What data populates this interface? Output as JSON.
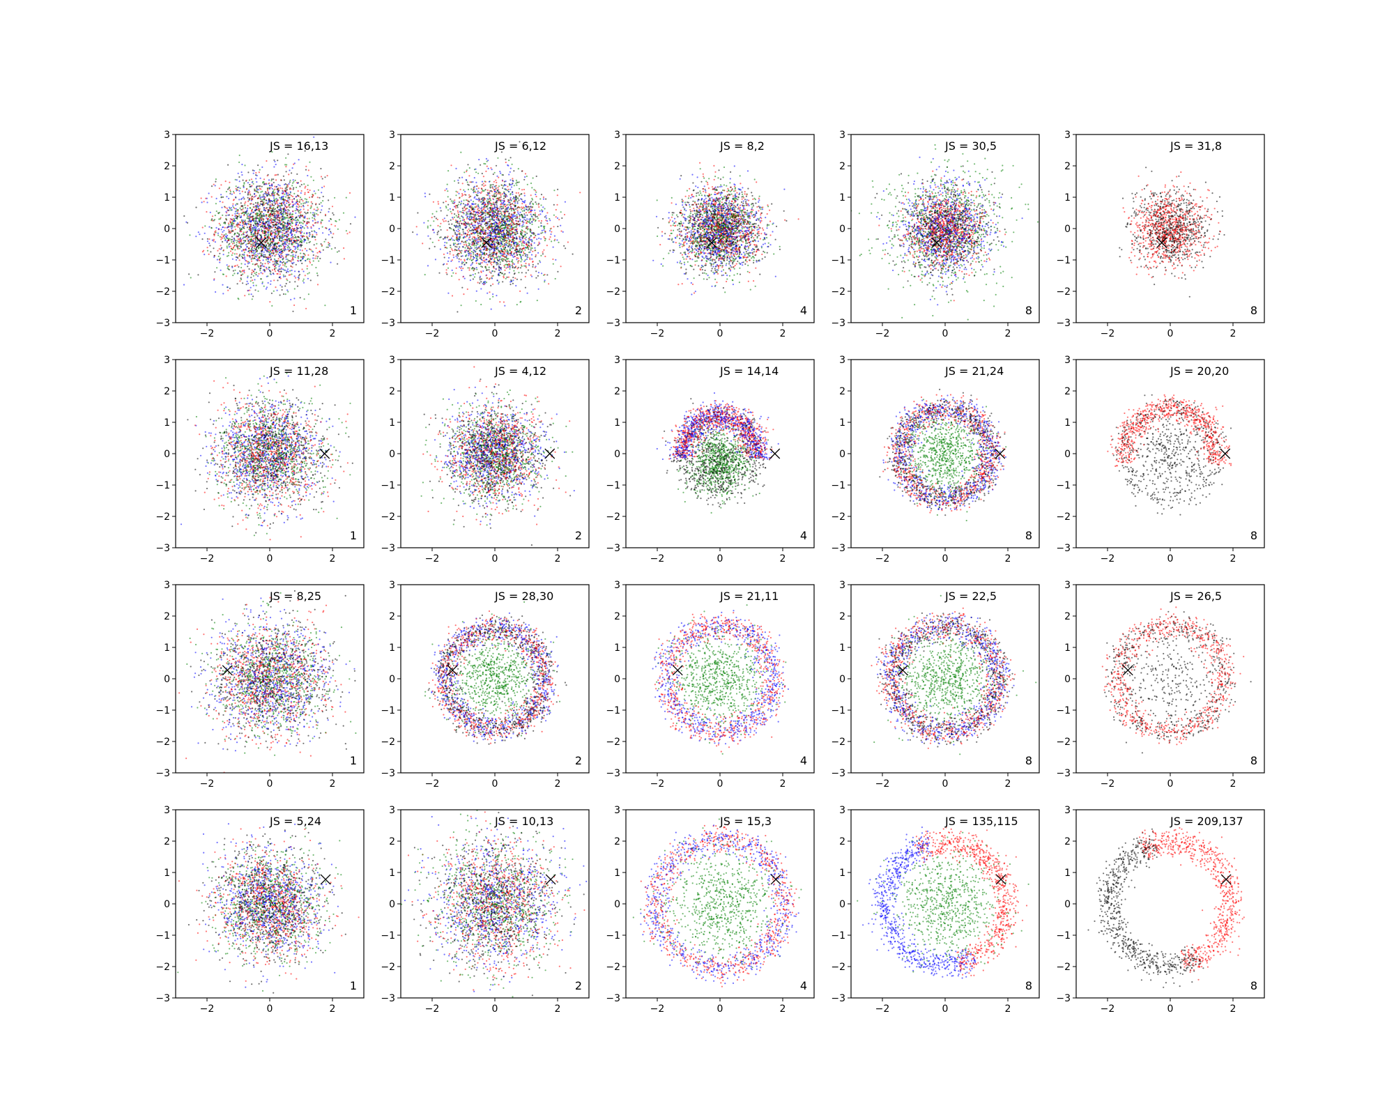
{
  "figure": {
    "layout": {
      "rows": 4,
      "cols": 5
    },
    "colors": {
      "red": "#ff0000",
      "blue": "#0000ff",
      "green": "#008000",
      "black": "#000000",
      "marker": "#000000"
    },
    "icons": {
      "marker": "x-marker-icon"
    }
  },
  "chart_data": [
    {
      "type": "scatter",
      "annotation": "JS = 16,13",
      "corner_label": "1",
      "xlim": [
        -3,
        3
      ],
      "ylim": [
        -3,
        3
      ],
      "xticks": [
        "−2",
        "0",
        "2"
      ],
      "yticks": [
        "−3",
        "−2",
        "−1",
        "0",
        "1",
        "2",
        "3"
      ],
      "marker": [
        -0.27,
        -0.45
      ],
      "series_colors": [
        "red",
        "blue",
        "green",
        "black"
      ],
      "distribution": {
        "shape": "gaussian",
        "sigma": 0.85
      }
    },
    {
      "type": "scatter",
      "annotation": "JS = 6,12",
      "corner_label": "2",
      "xlim": [
        -3,
        3
      ],
      "ylim": [
        -3,
        3
      ],
      "xticks": [
        "−2",
        "0",
        "2"
      ],
      "yticks": [
        "−3",
        "−2",
        "−1",
        "0",
        "1",
        "2",
        "3"
      ],
      "marker": [
        -0.27,
        -0.45
      ],
      "series_colors": [
        "red",
        "blue",
        "green",
        "black"
      ],
      "distribution": {
        "shape": "gaussian",
        "sigma": 0.8
      }
    },
    {
      "type": "scatter",
      "annotation": "JS = 8,2",
      "corner_label": "4",
      "xlim": [
        -3,
        3
      ],
      "ylim": [
        -3,
        3
      ],
      "xticks": [
        "−2",
        "0",
        "2"
      ],
      "yticks": [
        "−3",
        "−2",
        "−1",
        "0",
        "1",
        "2",
        "3"
      ],
      "marker": [
        -0.27,
        -0.45
      ],
      "series_colors": [
        "blue",
        "red",
        "black",
        "green"
      ],
      "distribution": {
        "shape": "gaussian",
        "sigma": 0.65
      }
    },
    {
      "type": "scatter",
      "annotation": "JS = 30,5",
      "corner_label": "8",
      "xlim": [
        -3,
        3
      ],
      "ylim": [
        -3,
        3
      ],
      "xticks": [
        "−2",
        "0",
        "2"
      ],
      "yticks": [
        "−3",
        "−2",
        "−1",
        "0",
        "1",
        "2",
        "3"
      ],
      "marker": [
        -0.27,
        -0.45
      ],
      "series_colors": [
        "green",
        "blue",
        "black",
        "red"
      ],
      "distribution": {
        "shape": "layered",
        "green": 1.0,
        "blue": 0.72,
        "red": 0.6
      }
    },
    {
      "type": "scatter",
      "annotation": "JS = 31,8",
      "corner_label": "8",
      "xlim": [
        -3,
        3
      ],
      "ylim": [
        -3,
        3
      ],
      "xticks": [
        "−2",
        "0",
        "2"
      ],
      "yticks": [
        "−3",
        "−2",
        "−1",
        "0",
        "1",
        "2",
        "3"
      ],
      "marker": [
        -0.27,
        -0.45
      ],
      "series_colors": [
        "black",
        "red"
      ],
      "distribution": {
        "shape": "gaussian",
        "sigma": 0.6
      }
    },
    {
      "type": "scatter",
      "annotation": "JS = 11,28",
      "corner_label": "1",
      "xlim": [
        -3,
        3
      ],
      "ylim": [
        -3,
        3
      ],
      "xticks": [
        "−2",
        "0",
        "2"
      ],
      "yticks": [
        "−3",
        "−2",
        "−1",
        "0",
        "1",
        "2",
        "3"
      ],
      "marker": [
        1.75,
        0.0
      ],
      "series_colors": [
        "red",
        "blue",
        "green",
        "black"
      ],
      "distribution": {
        "shape": "gaussian",
        "sigma": 0.85
      }
    },
    {
      "type": "scatter",
      "annotation": "JS = 4,12",
      "corner_label": "2",
      "xlim": [
        -3,
        3
      ],
      "ylim": [
        -3,
        3
      ],
      "xticks": [
        "−2",
        "0",
        "2"
      ],
      "yticks": [
        "−3",
        "−2",
        "−1",
        "0",
        "1",
        "2",
        "3"
      ],
      "marker": [
        1.75,
        0.0
      ],
      "series_colors": [
        "red",
        "blue",
        "green",
        "black"
      ],
      "distribution": {
        "shape": "gaussian",
        "sigma": 0.75
      }
    },
    {
      "type": "scatter",
      "annotation": "JS = 14,14",
      "corner_label": "4",
      "xlim": [
        -3,
        3
      ],
      "ylim": [
        -3,
        3
      ],
      "xticks": [
        "−2",
        "0",
        "2"
      ],
      "yticks": [
        "−3",
        "−2",
        "−1",
        "0",
        "1",
        "2",
        "3"
      ],
      "marker": [
        1.75,
        0.0
      ],
      "series_colors": [
        "blue",
        "green",
        "red",
        "black"
      ],
      "distribution": {
        "shape": "arc-top",
        "radius": 1.2
      }
    },
    {
      "type": "scatter",
      "annotation": "JS = 21,24",
      "corner_label": "8",
      "xlim": [
        -3,
        3
      ],
      "ylim": [
        -3,
        3
      ],
      "xticks": [
        "−2",
        "0",
        "2"
      ],
      "yticks": [
        "−3",
        "−2",
        "−1",
        "0",
        "1",
        "2",
        "3"
      ],
      "marker": [
        1.75,
        0.0
      ],
      "series_colors": [
        "blue",
        "green",
        "black",
        "red"
      ],
      "distribution": {
        "shape": "ring-core",
        "radius": 1.45
      }
    },
    {
      "type": "scatter",
      "annotation": "JS = 20,20",
      "corner_label": "8",
      "xlim": [
        -3,
        3
      ],
      "ylim": [
        -3,
        3
      ],
      "xticks": [
        "−2",
        "0",
        "2"
      ],
      "yticks": [
        "−3",
        "−2",
        "−1",
        "0",
        "1",
        "2",
        "3"
      ],
      "marker": [
        1.75,
        0.0
      ],
      "series_colors": [
        "black",
        "red"
      ],
      "distribution": {
        "shape": "ring-arc",
        "radius": 1.45
      }
    },
    {
      "type": "scatter",
      "annotation": "JS = 8,25",
      "corner_label": "1",
      "xlim": [
        -3,
        3
      ],
      "ylim": [
        -3,
        3
      ],
      "xticks": [
        "−2",
        "0",
        "2"
      ],
      "yticks": [
        "−3",
        "−2",
        "−1",
        "0",
        "1",
        "2",
        "3"
      ],
      "marker": [
        -1.35,
        0.27
      ],
      "series_colors": [
        "red",
        "blue",
        "green",
        "black"
      ],
      "distribution": {
        "shape": "gaussian",
        "sigma": 0.9
      }
    },
    {
      "type": "scatter",
      "annotation": "JS = 28,30",
      "corner_label": "2",
      "xlim": [
        -3,
        3
      ],
      "ylim": [
        -3,
        3
      ],
      "xticks": [
        "−2",
        "0",
        "2"
      ],
      "yticks": [
        "−3",
        "−2",
        "−1",
        "0",
        "1",
        "2",
        "3"
      ],
      "marker": [
        -1.35,
        0.27
      ],
      "series_colors": [
        "red",
        "blue",
        "green",
        "black"
      ],
      "distribution": {
        "shape": "ring-core",
        "radius": 1.6
      }
    },
    {
      "type": "scatter",
      "annotation": "JS = 21,11",
      "corner_label": "4",
      "xlim": [
        -3,
        3
      ],
      "ylim": [
        -3,
        3
      ],
      "xticks": [
        "−2",
        "0",
        "2"
      ],
      "yticks": [
        "−3",
        "−2",
        "−1",
        "0",
        "1",
        "2",
        "3"
      ],
      "marker": [
        -1.35,
        0.27
      ],
      "series_colors": [
        "red",
        "blue",
        "green"
      ],
      "distribution": {
        "shape": "ring-core",
        "radius": 1.7
      }
    },
    {
      "type": "scatter",
      "annotation": "JS = 22,5",
      "corner_label": "8",
      "xlim": [
        -3,
        3
      ],
      "ylim": [
        -3,
        3
      ],
      "xticks": [
        "−2",
        "0",
        "2"
      ],
      "yticks": [
        "−3",
        "−2",
        "−1",
        "0",
        "1",
        "2",
        "3"
      ],
      "marker": [
        -1.35,
        0.27
      ],
      "series_colors": [
        "green",
        "blue",
        "red",
        "black"
      ],
      "distribution": {
        "shape": "ring-wide",
        "radius": 1.7
      }
    },
    {
      "type": "scatter",
      "annotation": "JS = 26,5",
      "corner_label": "8",
      "xlim": [
        -3,
        3
      ],
      "ylim": [
        -3,
        3
      ],
      "xticks": [
        "−2",
        "0",
        "2"
      ],
      "yticks": [
        "−3",
        "−2",
        "−1",
        "0",
        "1",
        "2",
        "3"
      ],
      "marker": [
        -1.35,
        0.27
      ],
      "series_colors": [
        "black",
        "red"
      ],
      "distribution": {
        "shape": "ring",
        "radius": 1.7
      }
    },
    {
      "type": "scatter",
      "annotation": "JS = 5,24",
      "corner_label": "1",
      "xlim": [
        -3,
        3
      ],
      "ylim": [
        -3,
        3
      ],
      "xticks": [
        "−2",
        "0",
        "2"
      ],
      "yticks": [
        "−3",
        "−2",
        "−1",
        "0",
        "1",
        "2",
        "3"
      ],
      "marker": [
        1.78,
        0.78
      ],
      "series_colors": [
        "red",
        "blue",
        "green",
        "black"
      ],
      "distribution": {
        "shape": "gaussian",
        "sigma": 0.85
      }
    },
    {
      "type": "scatter",
      "annotation": "JS = 10,13",
      "corner_label": "2",
      "xlim": [
        -3,
        3
      ],
      "ylim": [
        -3,
        3
      ],
      "xticks": [
        "−2",
        "0",
        "2"
      ],
      "yticks": [
        "−3",
        "−2",
        "−1",
        "0",
        "1",
        "2",
        "3"
      ],
      "marker": [
        1.78,
        0.78
      ],
      "series_colors": [
        "red",
        "blue",
        "green",
        "black"
      ],
      "distribution": {
        "shape": "gaussian",
        "sigma": 1.0
      }
    },
    {
      "type": "scatter",
      "annotation": "JS = 15,3",
      "corner_label": "4",
      "xlim": [
        -3,
        3
      ],
      "ylim": [
        -3,
        3
      ],
      "xticks": [
        "−2",
        "0",
        "2"
      ],
      "yticks": [
        "−3",
        "−2",
        "−1",
        "0",
        "1",
        "2",
        "3"
      ],
      "marker": [
        1.78,
        0.78
      ],
      "series_colors": [
        "red",
        "blue",
        "green"
      ],
      "distribution": {
        "shape": "ring-core",
        "radius": 2.05
      }
    },
    {
      "type": "scatter",
      "annotation": "JS = 135,115",
      "corner_label": "8",
      "xlim": [
        -3,
        3
      ],
      "ylim": [
        -3,
        3
      ],
      "xticks": [
        "−2",
        "0",
        "2"
      ],
      "yticks": [
        "−3",
        "−2",
        "−1",
        "0",
        "1",
        "2",
        "3"
      ],
      "marker": [
        1.78,
        0.78
      ],
      "series_colors": [
        "blue",
        "red",
        "green"
      ],
      "distribution": {
        "shape": "ring-split",
        "radius": 1.95
      }
    },
    {
      "type": "scatter",
      "annotation": "JS = 209,137",
      "corner_label": "8",
      "xlim": [
        -3,
        3
      ],
      "ylim": [
        -3,
        3
      ],
      "xticks": [
        "−2",
        "0",
        "2"
      ],
      "yticks": [
        "−3",
        "−2",
        "−1",
        "0",
        "1",
        "2",
        "3"
      ],
      "marker": [
        1.78,
        0.78
      ],
      "series_colors": [
        "black",
        "red"
      ],
      "distribution": {
        "shape": "ring-split",
        "radius": 1.95
      }
    }
  ]
}
